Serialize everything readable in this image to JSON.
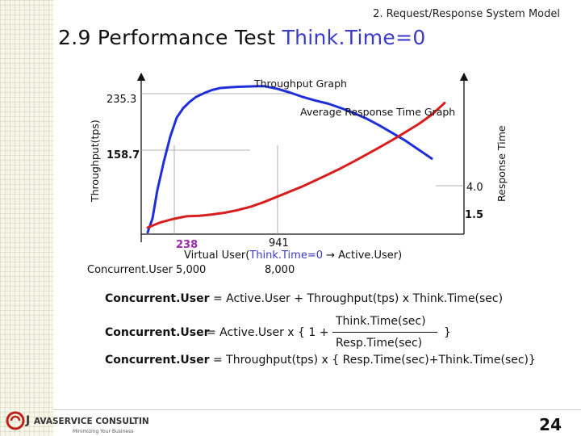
{
  "header": {
    "section": "2. Request/Response System Model",
    "title_main": "2.9 Performance Test ",
    "title_accent": "Think.Time=0"
  },
  "chart_data": {
    "type": "line",
    "title": "Throughput Graph",
    "secondary_title": "Average Response Time Graph",
    "ylabel": "Throughput(tps)",
    "y2label": "Response Time",
    "xlabel_prefix": "Virtual User(",
    "xlabel_accent": "Think.Time=0",
    "xlabel_arrow": " → ",
    "xlabel_suffix": "Active.User)",
    "y_tick_top": "235.3",
    "y_tick_mid": "158.7",
    "y2_tick_top": "4.0",
    "y2_tick_bottom": "1.5",
    "x_marker_left": "238",
    "x_marker_right": "941",
    "concurrent_label": "Concurrent.User 5,000",
    "concurrent_right": "8,000",
    "xlim": [
      0,
      1000
    ],
    "ylim": [
      0,
      250
    ],
    "y2lim": [
      0,
      6
    ],
    "series": [
      {
        "color": "#1f2fd8",
        "axis": "left",
        "x": [
          20,
          35,
          50,
          70,
          90,
          110,
          130,
          150,
          170,
          195,
          220,
          245,
          270,
          300,
          330,
          360,
          380,
          420,
          460,
          500,
          540,
          580,
          620,
          660,
          700,
          740,
          780,
          820,
          860,
          900
        ],
        "y": [
          3,
          25,
          70,
          115,
          155,
          185,
          200,
          210,
          218,
          224,
          229,
          232,
          233,
          234,
          234.5,
          235,
          235,
          231,
          225,
          218,
          212,
          207,
          200,
          192,
          183,
          172,
          160,
          148,
          134,
          120
        ]
      },
      {
        "color": "#d81f1f",
        "axis": "right",
        "x": [
          20,
          60,
          100,
          140,
          180,
          220,
          260,
          300,
          340,
          380,
          420,
          460,
          500,
          540,
          580,
          620,
          660,
          700,
          740,
          780,
          820,
          860,
          900,
          940
        ],
        "y": [
          0.25,
          0.45,
          0.58,
          0.68,
          0.7,
          0.75,
          0.82,
          0.92,
          1.05,
          1.22,
          1.42,
          1.62,
          1.82,
          2.05,
          2.28,
          2.52,
          2.78,
          3.05,
          3.32,
          3.6,
          3.9,
          4.2,
          4.55,
          5.0
        ]
      }
    ],
    "guides": [
      {
        "x": 238,
        "color": "#888888"
      },
      {
        "x": 941,
        "color": "#888888"
      }
    ]
  },
  "formulas": {
    "f1_lhs": "Concurrent.User",
    "f1_rhs": "= Active.User + Throughput(tps) x Think.Time(sec)",
    "f2_lhs": "Concurrent.User",
    "f2_pre": "= Active.User x { 1 +",
    "f2_num": "Think.Time(sec)",
    "f2_den": "Resp.Time(sec)",
    "f2_close": "}",
    "f3_lhs": "Concurrent.User",
    "f3_rhs": "= Throughput(tps) x { Resp.Time(sec)+Think.Time(sec)}"
  },
  "footer": {
    "logo_j": "J",
    "logo_text": "AVASERVICE CONSULTING",
    "logo_sub": "Minimizing Your Business",
    "page_number": "24"
  }
}
